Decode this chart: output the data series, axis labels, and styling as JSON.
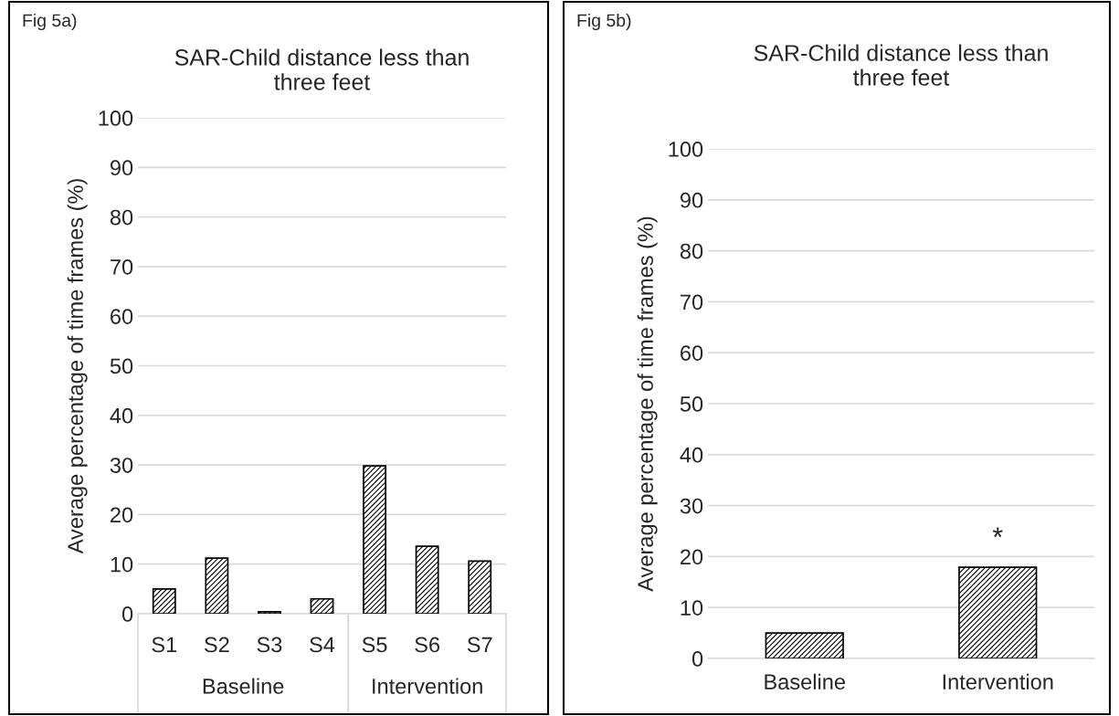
{
  "chart_data": [
    {
      "type": "bar",
      "title": "SAR-Child distance less than\nthree feet",
      "ylabel": "Average percentage of time frames (%)",
      "categories": [
        "S1",
        "S2",
        "S3",
        "S4",
        "S5",
        "S6",
        "S7"
      ],
      "values": [
        5.0,
        11.2,
        0.4,
        3.0,
        29.8,
        13.6,
        10.6
      ],
      "color": "#000000",
      "ylim": [
        0,
        100
      ],
      "yticks": [
        0,
        10,
        20,
        30,
        40,
        50,
        60,
        70,
        80,
        90,
        100
      ],
      "grid": "y",
      "annotations": [
        "Fig 5a)",
        "Baseline",
        "Intervention"
      ]
    },
    {
      "type": "bar",
      "title": "SAR-Child distance less than\nthree feet",
      "ylabel": "Average percentage of time frames (%)",
      "categories": [
        "Baseline",
        "Intervention"
      ],
      "values": [
        5.0,
        17.9
      ],
      "color": "#000000",
      "ylim": [
        0,
        100
      ],
      "yticks": [
        0,
        10,
        20,
        30,
        40,
        50,
        60,
        70,
        80,
        90,
        100
      ],
      "grid": "y",
      "annotations": [
        "Fig 5b)",
        "*"
      ]
    }
  ]
}
